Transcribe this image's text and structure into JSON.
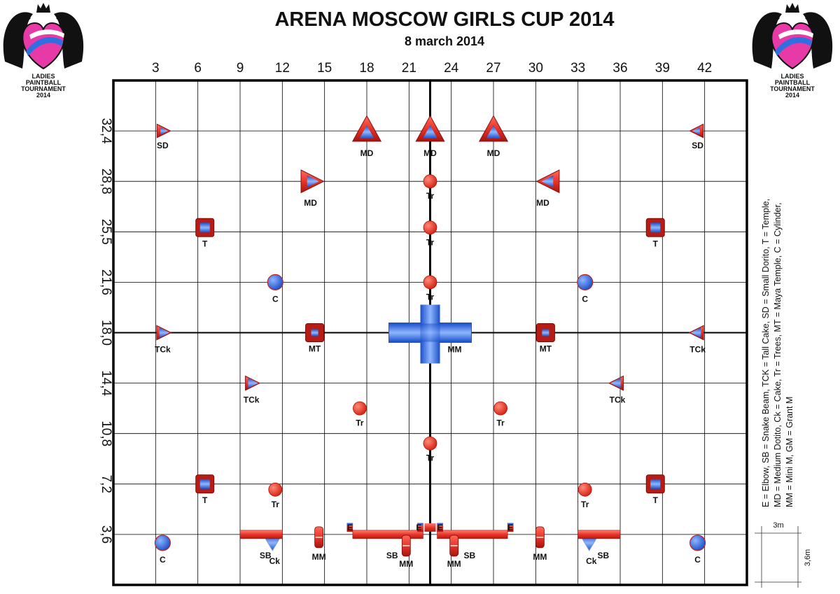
{
  "title": "ARENA MOSCOW GIRLS CUP 2014",
  "subtitle": "8 march 2014",
  "logo": {
    "lines": [
      "LADIES",
      "PAINTBALL",
      "TOURNAMENT",
      "2014"
    ]
  },
  "x_axis_ticks": [
    "3",
    "6",
    "9",
    "12",
    "15",
    "18",
    "21",
    "24",
    "27",
    "30",
    "33",
    "36",
    "39",
    "42"
  ],
  "y_axis_ticks": [
    "32,4",
    "28,8",
    "25,5",
    "21,6",
    "18,0",
    "14,4",
    "10,8",
    "7,2",
    "3,6"
  ],
  "legend_lines": [
    "E = Elbow, SB = Snake Beam, TCK = Tall Cake, SD = Small Dorito, T = Temple,",
    "MD = Medium Dotito, Ck = Cake, Tr = Trees, MT = Maya Temple, C = Cylinder,",
    "MM = Mini M, GM = Grant M"
  ],
  "scale": {
    "width_label": "3m",
    "height_label": "3,6m"
  },
  "colors": {
    "red": "#e8352a",
    "blue": "#2f6fe0",
    "dark_red": "#8a1010",
    "grid": "#000000"
  },
  "field": {
    "width_m": 45,
    "height_m": 36,
    "center_line_x": 22.5
  },
  "obstacles": [
    {
      "type": "sd",
      "dir": "right",
      "x": 3.5,
      "y": 32.4,
      "label": "SD"
    },
    {
      "type": "sd",
      "dir": "left",
      "x": 41.5,
      "y": 32.4,
      "label": "SD"
    },
    {
      "type": "md",
      "dir": "up",
      "x": 18,
      "y": 32.4,
      "label": "MD"
    },
    {
      "type": "md",
      "dir": "up",
      "x": 22.5,
      "y": 32.4,
      "label": "MD"
    },
    {
      "type": "md",
      "dir": "up",
      "x": 27,
      "y": 32.4,
      "label": "MD"
    },
    {
      "type": "md",
      "dir": "right",
      "x": 14,
      "y": 28.8,
      "label": "MD"
    },
    {
      "type": "md",
      "dir": "left",
      "x": 31,
      "y": 28.8,
      "label": "MD"
    },
    {
      "type": "tr",
      "x": 22.5,
      "y": 28.8,
      "label": "Tr"
    },
    {
      "type": "t",
      "x": 6.5,
      "y": 25.5,
      "label": "T"
    },
    {
      "type": "t",
      "x": 38.5,
      "y": 25.5,
      "label": "T"
    },
    {
      "type": "tr",
      "x": 22.5,
      "y": 25.5,
      "label": "Tr"
    },
    {
      "type": "c",
      "x": 11.5,
      "y": 21.6,
      "label": "C"
    },
    {
      "type": "c",
      "x": 33.5,
      "y": 21.6,
      "label": "C"
    },
    {
      "type": "tr",
      "x": 22.5,
      "y": 21.6,
      "label": "Tr"
    },
    {
      "type": "tck",
      "dir": "right",
      "x": 3.5,
      "y": 18,
      "label": "TCk"
    },
    {
      "type": "tck",
      "dir": "left",
      "x": 41.5,
      "y": 18,
      "label": "TCk"
    },
    {
      "type": "mt",
      "x": 14.3,
      "y": 18,
      "label": "MT"
    },
    {
      "type": "mt",
      "x": 30.7,
      "y": 18,
      "label": "MT"
    },
    {
      "type": "cross",
      "x": 22.5,
      "y": 18,
      "label": "MM"
    },
    {
      "type": "tck",
      "dir": "right",
      "x": 9.8,
      "y": 14.4,
      "label": "TCk"
    },
    {
      "type": "tck",
      "dir": "left",
      "x": 35.8,
      "y": 14.4,
      "label": "TCk"
    },
    {
      "type": "tr",
      "x": 17.5,
      "y": 12.6,
      "label": "Tr"
    },
    {
      "type": "tr",
      "x": 27.5,
      "y": 12.6,
      "label": "Tr"
    },
    {
      "type": "tr",
      "x": 22.5,
      "y": 10.1,
      "label": "Tr"
    },
    {
      "type": "t",
      "x": 6.5,
      "y": 7.2,
      "label": "T"
    },
    {
      "type": "t",
      "x": 38.5,
      "y": 7.2,
      "label": "T"
    },
    {
      "type": "tr",
      "x": 11.5,
      "y": 6.8,
      "label": "Tr"
    },
    {
      "type": "tr",
      "x": 33.5,
      "y": 6.8,
      "label": "Tr"
    },
    {
      "type": "c",
      "x": 3.5,
      "y": 3,
      "label": "C"
    },
    {
      "type": "c",
      "x": 41.5,
      "y": 3,
      "label": "C"
    },
    {
      "type": "ck",
      "x": 11.3,
      "y": 3,
      "label": "Ck"
    },
    {
      "type": "ck",
      "x": 33.8,
      "y": 3,
      "label": "Ck"
    }
  ],
  "bottom_labels": [
    {
      "text": "SB",
      "x": 10.8,
      "y": 1.9
    },
    {
      "text": "SB",
      "x": 34.8,
      "y": 1.9
    },
    {
      "text": "SB",
      "x": 19.8,
      "y": 1.9
    },
    {
      "text": "SB",
      "x": 25.3,
      "y": 1.9
    },
    {
      "text": "MM",
      "x": 14.6,
      "y": 1.8
    },
    {
      "text": "MM",
      "x": 30.3,
      "y": 1.8
    },
    {
      "text": "MM",
      "x": 20.8,
      "y": 1.3
    },
    {
      "text": "MM",
      "x": 24.2,
      "y": 1.3
    },
    {
      "text": "E",
      "x": 16.8,
      "y": 3.9
    },
    {
      "text": "E",
      "x": 21.7,
      "y": 3.9
    },
    {
      "text": "E",
      "x": 23.2,
      "y": 3.9
    },
    {
      "text": "E",
      "x": 28.2,
      "y": 3.9
    }
  ]
}
